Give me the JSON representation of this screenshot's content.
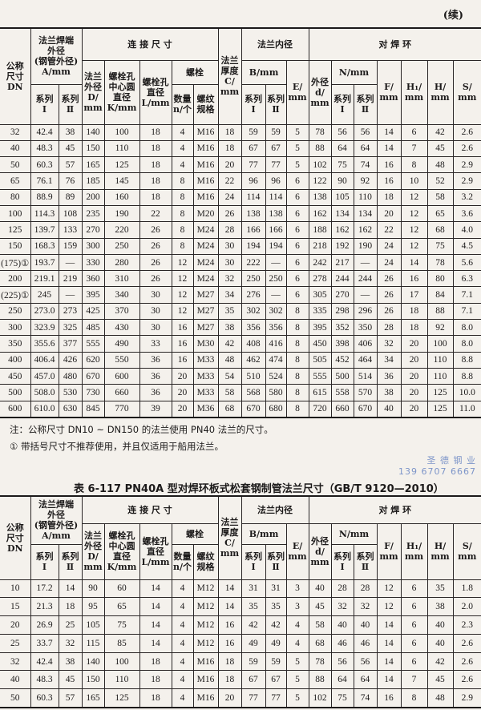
{
  "continued_label": "(续)",
  "headers": {
    "dn": "公称\n尺寸\nDN",
    "a_group": "法兰焊端\n外径\n(钢管外径)\nA/mm",
    "conn_group": "连 接 尺 寸",
    "c": "法兰\n厚度\nC/\nmm",
    "inner_group": "法兰内径",
    "ring_group": "对 焊 环",
    "d_outer": "法兰\n外径\nD/\nmm",
    "k": "螺栓孔\n中心圆\n直径\nK/mm",
    "l": "螺栓孔\n直径\nL/mm",
    "bolt_group": "螺栓",
    "b": "B/mm",
    "e": "E/\nmm",
    "ring_d": "外径\nd/\nmm",
    "n_group": "N/mm",
    "f": "F/\nmm",
    "h1": "H₁/\nmm",
    "h": "H/\nmm",
    "s": "S/\nmm",
    "series1": "系列\nⅠ",
    "series2": "系列\nⅡ",
    "bolt_n": "数量\nn/个",
    "bolt_spec": "螺纹\n规格"
  },
  "tables": [
    {
      "rows": [
        [
          "32",
          "42.4",
          "38",
          "140",
          "100",
          "18",
          "4",
          "M16",
          "18",
          "59",
          "59",
          "5",
          "78",
          "56",
          "56",
          "14",
          "6",
          "42",
          "2.6"
        ],
        [
          "40",
          "48.3",
          "45",
          "150",
          "110",
          "18",
          "4",
          "M16",
          "18",
          "67",
          "67",
          "5",
          "88",
          "64",
          "64",
          "14",
          "7",
          "45",
          "2.6"
        ],
        [
          "50",
          "60.3",
          "57",
          "165",
          "125",
          "18",
          "4",
          "M16",
          "20",
          "77",
          "77",
          "5",
          "102",
          "75",
          "74",
          "16",
          "8",
          "48",
          "2.9"
        ],
        [
          "65",
          "76.1",
          "76",
          "185",
          "145",
          "18",
          "8",
          "M16",
          "22",
          "96",
          "96",
          "6",
          "122",
          "90",
          "92",
          "16",
          "10",
          "52",
          "2.9"
        ],
        [
          "80",
          "88.9",
          "89",
          "200",
          "160",
          "18",
          "8",
          "M16",
          "24",
          "114",
          "114",
          "6",
          "138",
          "105",
          "110",
          "18",
          "12",
          "58",
          "3.2"
        ],
        [
          "100",
          "114.3",
          "108",
          "235",
          "190",
          "22",
          "8",
          "M20",
          "26",
          "138",
          "138",
          "6",
          "162",
          "134",
          "134",
          "20",
          "12",
          "65",
          "3.6"
        ],
        [
          "125",
          "139.7",
          "133",
          "270",
          "220",
          "26",
          "8",
          "M24",
          "28",
          "166",
          "166",
          "6",
          "188",
          "162",
          "162",
          "22",
          "12",
          "68",
          "4.0"
        ],
        [
          "150",
          "168.3",
          "159",
          "300",
          "250",
          "26",
          "8",
          "M24",
          "30",
          "194",
          "194",
          "6",
          "218",
          "192",
          "190",
          "24",
          "12",
          "75",
          "4.5"
        ],
        [
          "(175)①",
          "193.7",
          "—",
          "330",
          "280",
          "26",
          "12",
          "M24",
          "30",
          "222",
          "—",
          "6",
          "242",
          "217",
          "—",
          "24",
          "14",
          "78",
          "5.6"
        ],
        [
          "200",
          "219.1",
          "219",
          "360",
          "310",
          "26",
          "12",
          "M24",
          "32",
          "250",
          "250",
          "6",
          "278",
          "244",
          "244",
          "26",
          "16",
          "80",
          "6.3"
        ],
        [
          "(225)①",
          "245",
          "—",
          "395",
          "340",
          "30",
          "12",
          "M27",
          "34",
          "276",
          "—",
          "6",
          "305",
          "270",
          "—",
          "26",
          "17",
          "84",
          "7.1"
        ],
        [
          "250",
          "273.0",
          "273",
          "425",
          "370",
          "30",
          "12",
          "M27",
          "35",
          "302",
          "302",
          "8",
          "335",
          "298",
          "296",
          "26",
          "18",
          "88",
          "7.1"
        ],
        [
          "300",
          "323.9",
          "325",
          "485",
          "430",
          "30",
          "16",
          "M27",
          "38",
          "356",
          "356",
          "8",
          "395",
          "352",
          "350",
          "28",
          "18",
          "92",
          "8.0"
        ],
        [
          "350",
          "355.6",
          "377",
          "555",
          "490",
          "33",
          "16",
          "M30",
          "42",
          "408",
          "416",
          "8",
          "450",
          "398",
          "406",
          "32",
          "20",
          "100",
          "8.0"
        ],
        [
          "400",
          "406.4",
          "426",
          "620",
          "550",
          "36",
          "16",
          "M33",
          "48",
          "462",
          "474",
          "8",
          "505",
          "452",
          "464",
          "34",
          "20",
          "110",
          "8.8"
        ],
        [
          "450",
          "457.0",
          "480",
          "670",
          "600",
          "36",
          "20",
          "M33",
          "54",
          "510",
          "524",
          "8",
          "555",
          "500",
          "514",
          "36",
          "20",
          "110",
          "8.8"
        ],
        [
          "500",
          "508.0",
          "530",
          "730",
          "660",
          "36",
          "20",
          "M33",
          "58",
          "568",
          "580",
          "8",
          "615",
          "558",
          "570",
          "38",
          "20",
          "125",
          "10.0"
        ],
        [
          "600",
          "610.0",
          "630",
          "845",
          "770",
          "39",
          "20",
          "M36",
          "68",
          "670",
          "680",
          "8",
          "720",
          "660",
          "670",
          "40",
          "20",
          "125",
          "11.0"
        ]
      ]
    },
    {
      "rows": [
        [
          "10",
          "17.2",
          "14",
          "90",
          "60",
          "14",
          "4",
          "M12",
          "14",
          "31",
          "31",
          "3",
          "40",
          "28",
          "28",
          "12",
          "6",
          "35",
          "1.8"
        ],
        [
          "15",
          "21.3",
          "18",
          "95",
          "65",
          "14",
          "4",
          "M12",
          "14",
          "35",
          "35",
          "3",
          "45",
          "32",
          "32",
          "12",
          "6",
          "38",
          "2.0"
        ],
        [
          "20",
          "26.9",
          "25",
          "105",
          "75",
          "14",
          "4",
          "M12",
          "16",
          "42",
          "42",
          "4",
          "58",
          "40",
          "40",
          "14",
          "6",
          "40",
          "2.3"
        ],
        [
          "25",
          "33.7",
          "32",
          "115",
          "85",
          "14",
          "4",
          "M12",
          "16",
          "49",
          "49",
          "4",
          "68",
          "46",
          "46",
          "14",
          "6",
          "40",
          "2.6"
        ],
        [
          "32",
          "42.4",
          "38",
          "140",
          "100",
          "18",
          "4",
          "M16",
          "18",
          "59",
          "59",
          "5",
          "78",
          "56",
          "56",
          "14",
          "6",
          "42",
          "2.6"
        ],
        [
          "40",
          "48.3",
          "45",
          "150",
          "110",
          "18",
          "4",
          "M16",
          "18",
          "67",
          "67",
          "5",
          "88",
          "64",
          "64",
          "14",
          "7",
          "45",
          "2.6"
        ],
        [
          "50",
          "60.3",
          "57",
          "165",
          "125",
          "18",
          "4",
          "M16",
          "20",
          "77",
          "77",
          "5",
          "102",
          "75",
          "74",
          "16",
          "8",
          "48",
          "2.9"
        ]
      ]
    }
  ],
  "notes": {
    "note1": "注：公称尺寸 DN10 ~ DN150 的法兰使用 PN40 法兰的尺寸。",
    "note2": "①  带括号尺寸不推荐使用，并且仅适用于船用法兰。"
  },
  "table2_title": "表 6-117  PN40A 型对焊环板式松套钢制管法兰尺寸（GB/T 9120—2010）",
  "watermark": {
    "line1": "圣 德 钢 业",
    "line2": "139 6707 6667"
  }
}
